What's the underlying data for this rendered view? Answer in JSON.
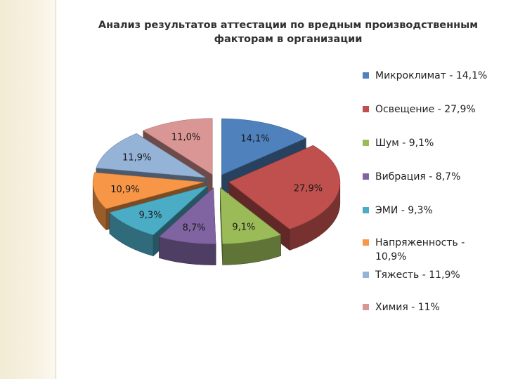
{
  "slide": {
    "title_line1": "Анализ результатов аттестации по вредным производственным",
    "title_line2": "факторам в организации"
  },
  "chart_data": {
    "type": "pie",
    "title": "Анализ результатов аттестации по вредным производственным факторам в организации",
    "style": "3d-exploded",
    "legend_position": "right",
    "slices": [
      {
        "label": "Микроклимат - 14,1%",
        "value": 14.1,
        "data_label": "14,1%",
        "color": "#4f81bd"
      },
      {
        "label": "Освещение - 27,9%",
        "value": 27.9,
        "data_label": "27,9%",
        "color": "#c0504d"
      },
      {
        "label": "Шум - 9,1%",
        "value": 9.1,
        "data_label": "9,1%",
        "color": "#9bbb59"
      },
      {
        "label": "Вибрация - 8,7%",
        "value": 8.7,
        "data_label": "8,7%",
        "color": "#8064a2"
      },
      {
        "label": "ЭМИ - 9,3%",
        "value": 9.3,
        "data_label": "9,3%",
        "color": "#4bacc6"
      },
      {
        "label": "Напряженность - 10,9%",
        "value": 10.9,
        "data_label": "10,9%",
        "color": "#f79646"
      },
      {
        "label": "Тяжесть - 11,9%",
        "value": 11.9,
        "data_label": "11,9%",
        "color": "#95b3d7"
      },
      {
        "label": "Химия - 11%",
        "value": 11.0,
        "data_label": "11,0%",
        "color": "#d99694"
      }
    ]
  }
}
